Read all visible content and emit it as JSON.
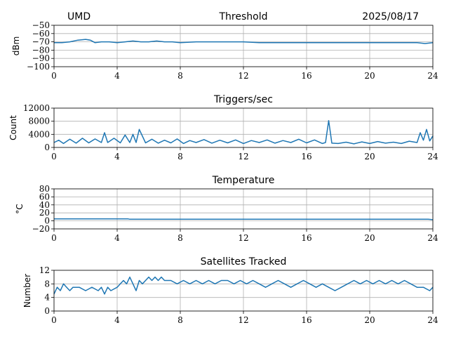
{
  "header": {
    "site": "UMD",
    "date": "2025/08/17"
  },
  "colors": {
    "series": "#1f77b4",
    "grid": "#b0b0b0",
    "axis": "#000000"
  },
  "chart_data": [
    {
      "type": "line",
      "title": "Threshold",
      "ylabel": "dBm",
      "xlim": [
        0,
        24
      ],
      "ylim": [
        -100,
        -50
      ],
      "xticks": [
        0,
        4,
        8,
        12,
        16,
        20,
        24
      ],
      "yticks": [
        -50,
        -60,
        -70,
        -80,
        -90,
        -100
      ],
      "ytick_labels": [
        "−50",
        "−60",
        "−70",
        "−80",
        "−90",
        "−100"
      ],
      "grid": true,
      "series": [
        {
          "x": [
            0,
            0.5,
            1,
            1.5,
            2,
            2.3,
            2.6,
            3,
            3.5,
            4,
            4.5,
            5,
            5.5,
            6,
            6.5,
            7,
            7.5,
            8,
            9,
            10,
            11,
            12,
            13,
            14,
            15,
            16,
            17,
            18,
            19,
            20,
            21,
            22,
            23,
            23.5,
            24
          ],
          "y": [
            -71,
            -71,
            -70,
            -68,
            -67,
            -68,
            -71,
            -70,
            -70,
            -71,
            -70,
            -69,
            -70,
            -70,
            -69,
            -70,
            -70,
            -71,
            -70,
            -70,
            -70,
            -70,
            -71,
            -71,
            -71,
            -71,
            -71,
            -71,
            -71,
            -71,
            -71,
            -71,
            -71,
            -72,
            -71
          ]
        }
      ]
    },
    {
      "type": "line",
      "title": "Triggers/sec",
      "ylabel": "Count",
      "xlim": [
        0,
        24
      ],
      "ylim": [
        0,
        12000
      ],
      "xticks": [
        0,
        4,
        8,
        12,
        16,
        20,
        24
      ],
      "yticks": [
        0,
        4000,
        8000,
        12000
      ],
      "grid": true,
      "series": [
        {
          "x": [
            0,
            0.3,
            0.6,
            1,
            1.4,
            1.8,
            2.2,
            2.6,
            3,
            3.2,
            3.4,
            3.8,
            4.2,
            4.5,
            4.8,
            5,
            5.2,
            5.4,
            5.8,
            6.2,
            6.6,
            7,
            7.4,
            7.8,
            8.2,
            8.6,
            9,
            9.5,
            10,
            10.5,
            11,
            11.5,
            12,
            12.5,
            13,
            13.5,
            14,
            14.5,
            15,
            15.5,
            16,
            16.5,
            17,
            17.2,
            17.4,
            17.6,
            18,
            18.5,
            19,
            19.5,
            20,
            20.5,
            21,
            21.5,
            22,
            22.5,
            23,
            23.2,
            23.4,
            23.6,
            23.8,
            24
          ],
          "y": [
            1500,
            2200,
            1200,
            2500,
            1300,
            2800,
            1400,
            2600,
            1500,
            4500,
            1500,
            2800,
            1400,
            3800,
            1500,
            4000,
            1500,
            5500,
            1400,
            2500,
            1300,
            2200,
            1400,
            2600,
            1200,
            2100,
            1500,
            2400,
            1300,
            2200,
            1400,
            2300,
            1200,
            2100,
            1500,
            2300,
            1300,
            2100,
            1500,
            2500,
            1400,
            2300,
            1200,
            1500,
            8200,
            1300,
            1200,
            1600,
            1100,
            1700,
            1200,
            1800,
            1300,
            1600,
            1200,
            1900,
            1500,
            4500,
            2200,
            5500,
            2000,
            3500
          ]
        }
      ]
    },
    {
      "type": "line",
      "title": "Temperature",
      "ylabel": "°C",
      "xlim": [
        0,
        24
      ],
      "ylim": [
        -20,
        80
      ],
      "xticks": [
        0,
        4,
        8,
        12,
        16,
        20,
        24
      ],
      "yticks": [
        -20,
        0,
        20,
        40,
        60,
        80
      ],
      "ytick_labels": [
        "−20",
        "0",
        "20",
        "40",
        "60",
        "80"
      ],
      "grid": true,
      "series": [
        {
          "x": [
            0,
            4.7,
            4.8,
            13.9,
            14,
            23.7,
            24
          ],
          "y": [
            5,
            5,
            4,
            4,
            4,
            4,
            3
          ]
        }
      ]
    },
    {
      "type": "line",
      "title": "Satellites Tracked",
      "ylabel": "Number",
      "xlim": [
        0,
        24
      ],
      "ylim": [
        0,
        12
      ],
      "xticks": [
        0,
        4,
        8,
        12,
        16,
        20,
        24
      ],
      "yticks": [
        0,
        4,
        8,
        12
      ],
      "grid": true,
      "series": [
        {
          "x": [
            0,
            0.2,
            0.4,
            0.6,
            0.8,
            1,
            1.2,
            1.6,
            2,
            2.4,
            2.8,
            3,
            3.2,
            3.4,
            3.6,
            4,
            4.2,
            4.4,
            4.6,
            4.8,
            5,
            5.2,
            5.4,
            5.6,
            5.8,
            6,
            6.2,
            6.4,
            6.6,
            6.8,
            7,
            7.4,
            7.8,
            8.2,
            8.6,
            9,
            9.4,
            9.8,
            10.2,
            10.6,
            11,
            11.4,
            11.8,
            12.2,
            12.6,
            13,
            13.4,
            13.8,
            14.2,
            14.6,
            15,
            15.4,
            15.8,
            16.2,
            16.6,
            17,
            17.4,
            17.8,
            18.2,
            18.6,
            19,
            19.4,
            19.8,
            20.2,
            20.6,
            21,
            21.4,
            21.8,
            22.2,
            22.6,
            23,
            23.4,
            23.8,
            24
          ],
          "y": [
            5,
            7,
            6,
            8,
            7,
            6,
            7,
            7,
            6,
            7,
            6,
            7,
            5,
            7,
            6,
            7,
            8,
            9,
            8,
            10,
            8,
            6,
            9,
            8,
            9,
            10,
            9,
            10,
            9,
            10,
            9,
            9,
            8,
            9,
            8,
            9,
            8,
            9,
            8,
            9,
            9,
            8,
            9,
            8,
            9,
            8,
            7,
            8,
            9,
            8,
            7,
            8,
            9,
            8,
            7,
            8,
            7,
            6,
            7,
            8,
            9,
            8,
            9,
            8,
            9,
            8,
            9,
            8,
            9,
            8,
            7,
            7,
            6,
            7
          ]
        }
      ]
    }
  ]
}
